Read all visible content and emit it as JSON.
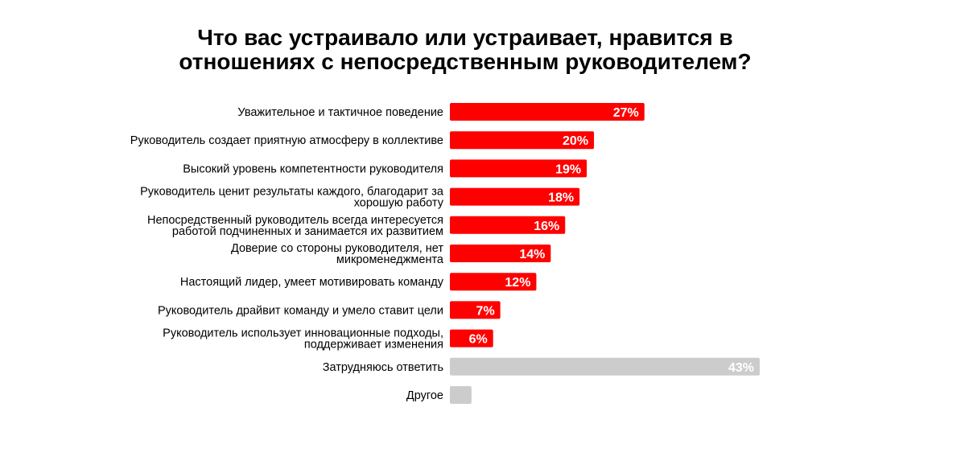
{
  "chart_data": {
    "type": "bar",
    "orientation": "horizontal",
    "title_lines": [
      "Что вас устраивало или устраивает, нравится в",
      "отношениях с непосредственным руководителем?"
    ],
    "categories": [
      [
        "Уважительное и тактичное поведение"
      ],
      [
        "Руководитель создает приятную атмосферу в коллективе"
      ],
      [
        "Высокий уровень компетентности руководителя"
      ],
      [
        "Руководитель ценит результаты каждого, благодарит за",
        "хорошую работу"
      ],
      [
        "Непосредственный руководитель всегда интересуется",
        "работой подчиненных и занимается их развитием"
      ],
      [
        "Доверие со стороны руководителя, нет",
        "микроменеджмента"
      ],
      [
        "Настоящий лидер, умеет мотивировать команду"
      ],
      [
        "Руководитель драйвит команду и умело ставит цели"
      ],
      [
        "Руководитель использует инновационные подходы,",
        "поддерживает изменения"
      ],
      [
        "Затрудняюсь ответить"
      ],
      [
        "Другое"
      ]
    ],
    "values": [
      27,
      20,
      19,
      18,
      16,
      14,
      12,
      7,
      6,
      43,
      3
    ],
    "value_labels": [
      "27%",
      "20%",
      "19%",
      "18%",
      "16%",
      "14%",
      "12%",
      "7%",
      "6%",
      "43%",
      ""
    ],
    "bar_colors": [
      "#ff0000",
      "#ff0000",
      "#ff0000",
      "#ff0000",
      "#ff0000",
      "#ff0000",
      "#ff0000",
      "#ff0000",
      "#ff0000",
      "#cccccc",
      "#cccccc"
    ],
    "xlim": [
      0,
      43
    ],
    "grid": false,
    "legend": "none"
  }
}
